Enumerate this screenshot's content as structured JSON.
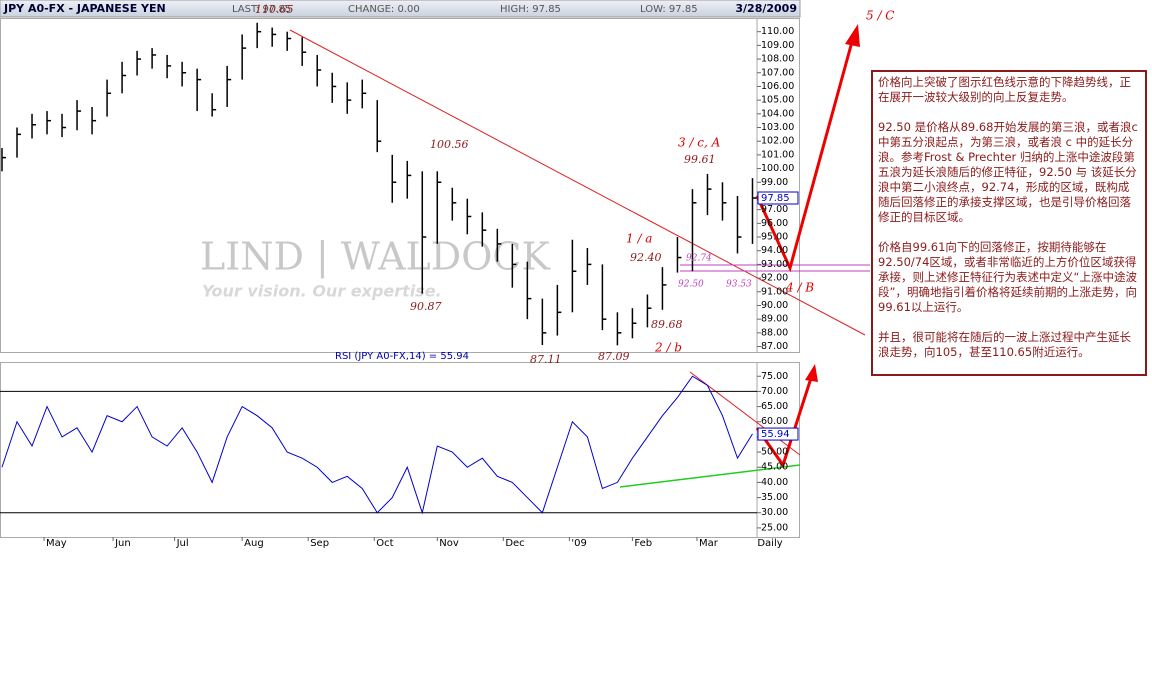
{
  "chart_data": [
    {
      "type": "ohlc",
      "title": "JPY A0-FX - JAPANESE YEN",
      "header": [
        "LAST: 97.85",
        "CHANGE: 0.00",
        "HIGH: 97.85",
        "LOW: 97.85"
      ],
      "date": "3/28/2009",
      "watermark": "LIND | WALDOCK",
      "slogan": "Your vision. Our expertise.",
      "last": 97.85,
      "color": "#000000",
      "close": [
        100.8,
        102.5,
        103.2,
        103.5,
        103.0,
        104.2,
        103.5,
        105.5,
        106.8,
        108.0,
        108.3,
        107.5,
        107.0,
        106.5,
        104.3,
        106.5,
        108.8,
        110.0,
        109.8,
        109.5,
        108.5,
        107.2,
        106.0,
        105.0,
        105.5,
        102.0,
        99.0,
        99.5,
        95.0,
        99.0,
        97.5,
        96.5,
        95.5,
        94.5,
        93.0,
        90.5,
        88.0,
        89.5,
        92.5,
        93.0,
        89.0,
        88.0,
        88.7,
        89.8,
        91.5,
        93.5,
        97.5,
        98.5,
        97.5,
        95.0,
        97.85
      ],
      "high": [
        101.5,
        103.0,
        104.0,
        104.2,
        104.0,
        105.0,
        104.5,
        106.5,
        107.8,
        108.6,
        108.8,
        108.3,
        107.8,
        107.3,
        105.5,
        107.5,
        109.8,
        110.65,
        110.3,
        110.0,
        109.6,
        108.3,
        107.0,
        106.3,
        106.5,
        105.0,
        101.0,
        100.56,
        99.8,
        99.8,
        98.6,
        97.8,
        96.8,
        95.6,
        94.5,
        93.2,
        90.5,
        91.5,
        94.8,
        94.2,
        93.0,
        89.5,
        89.8,
        90.8,
        92.8,
        95.0,
        98.5,
        99.61,
        99.0,
        98.0,
        99.3
      ],
      "low": [
        99.8,
        100.8,
        102.2,
        102.5,
        102.3,
        102.8,
        102.5,
        103.8,
        105.5,
        106.8,
        107.3,
        106.6,
        106.0,
        104.2,
        103.8,
        104.5,
        106.5,
        108.8,
        108.9,
        108.6,
        107.5,
        106.0,
        104.8,
        104.0,
        104.4,
        101.2,
        97.5,
        97.8,
        90.87,
        94.5,
        96.2,
        95.2,
        94.3,
        93.2,
        91.3,
        89.0,
        87.11,
        87.8,
        89.5,
        91.5,
        88.2,
        87.09,
        87.6,
        88.4,
        89.68,
        92.4,
        92.5,
        96.6,
        96.2,
        93.8,
        94.5
      ],
      "ylim": [
        86.6,
        111
      ],
      "xlim": [
        0,
        50.3
      ],
      "yticks": [
        {
          "value": 87,
          "label": "87.00"
        },
        {
          "value": 88,
          "label": "88.00"
        },
        {
          "value": 89,
          "label": "89.00"
        },
        {
          "value": 90,
          "label": "90.00"
        },
        {
          "value": 91,
          "label": "91.00"
        },
        {
          "value": 92,
          "label": "92.00"
        },
        {
          "value": 93,
          "label": "93.00"
        },
        {
          "value": 94,
          "label": "94.00"
        },
        {
          "value": 95,
          "label": "95.00"
        },
        {
          "value": 96,
          "label": "96.00"
        },
        {
          "value": 97,
          "label": "97.00"
        },
        {
          "value": 98,
          "label": "98.00"
        },
        {
          "value": 99,
          "label": "99.00"
        },
        {
          "value": 100,
          "label": "100.00"
        },
        {
          "value": 101,
          "label": "101.00"
        },
        {
          "value": 102,
          "label": "102.00"
        },
        {
          "value": 103,
          "label": "103.00"
        },
        {
          "value": 104,
          "label": "104.00"
        },
        {
          "value": 105,
          "label": "105.00"
        },
        {
          "value": 106,
          "label": "106.00"
        },
        {
          "value": 107,
          "label": "107.00"
        },
        {
          "value": 108,
          "label": "108.00"
        },
        {
          "value": 109,
          "label": "109.00"
        },
        {
          "value": 110,
          "label": "110.00"
        }
      ],
      "annotations": [
        "110.65",
        "100.56",
        "90.87",
        "87.11",
        "87.09",
        "89.68",
        "92.40",
        "99.61",
        "92.74",
        "92.50",
        "93.53",
        "5 / C",
        "3 / c, A",
        "1 / a",
        "2 / b",
        "4 / B"
      ]
    },
    {
      "type": "line",
      "title": "RSI (JPY A0-FX,14) = 55.94",
      "last": 55.94,
      "color": "#0000cc",
      "values": [
        45,
        60,
        52,
        65,
        55,
        58,
        50,
        62,
        60,
        65,
        55,
        52,
        58,
        50,
        40,
        55,
        65,
        62,
        58,
        50,
        48,
        45,
        40,
        42,
        38,
        30,
        35,
        45,
        30,
        52,
        50,
        45,
        48,
        42,
        40,
        35,
        30,
        45,
        60,
        55,
        38,
        40,
        48,
        55,
        62,
        68,
        75,
        72,
        62,
        48,
        56
      ],
      "ylim": [
        22,
        79.7
      ],
      "xlim": [
        0,
        50.3
      ],
      "ref_lines": [
        70,
        30
      ],
      "yticks": [
        {
          "value": 25,
          "label": "25.00"
        },
        {
          "value": 30,
          "label": "30.00"
        },
        {
          "value": 35,
          "label": "35.00"
        },
        {
          "value": 40,
          "label": "40.00"
        },
        {
          "value": 45,
          "label": "45.00"
        },
        {
          "value": 50,
          "label": "50.00"
        },
        {
          "value": 55,
          "label": "55.00"
        },
        {
          "value": 60,
          "label": "60.00"
        },
        {
          "value": 65,
          "label": "65.00"
        },
        {
          "value": 70,
          "label": "70.00"
        },
        {
          "value": 75,
          "label": "75.00"
        }
      ],
      "xticks": [
        {
          "value": 2.8,
          "label": "May"
        },
        {
          "value": 7.4,
          "label": "Jun"
        },
        {
          "value": 11.5,
          "label": "Jul"
        },
        {
          "value": 16,
          "label": "Aug"
        },
        {
          "value": 20.4,
          "label": "Sep"
        },
        {
          "value": 24.8,
          "label": "Oct"
        },
        {
          "value": 29,
          "label": "Nov"
        },
        {
          "value": 33.4,
          "label": "Dec"
        },
        {
          "value": 37.8,
          "label": "'09"
        },
        {
          "value": 42,
          "label": "Feb"
        },
        {
          "value": 46.3,
          "label": "Mar"
        }
      ],
      "x_label": "Daily"
    }
  ],
  "note": [
    "价格向上突破了图示红色线示意的下降趋势线，正在展开一波较大级别的向上反复走势。",
    "92.50 是价格从89.68开始发展的第三浪，或者浪c中第五分浪起点，为第三浪，或者浪 c 中的延长分浪。参考Frost & Prechter 归纳的上涨中途波段第五浪为延长浪随后的修正特征，92.50 与 该延长分浪中第二小浪终点，92.74，形成的区域，既构成随后回落修正的承接支撑区域，也是引导价格回落修正的目标区域。",
    "价格自99.61向下的回落修正，按期待能够在92.50/74区域，或者非常临近的上方价位区域获得承接，则上述修正特征行为表述中定义“上涨中途波段”，明确地指引着价格将延续前期的上涨走势，向99.61以上运行。",
    "并且，很可能将在随后的一波上涨过程中产生延长浪走势，向105，甚至110.65附近运行。"
  ]
}
